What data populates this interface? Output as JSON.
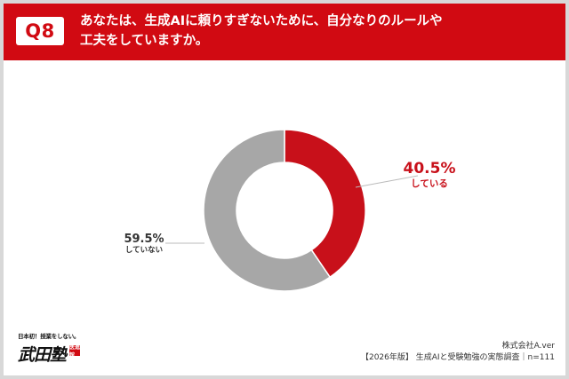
{
  "header": {
    "badge": "Q8",
    "question_line1": "あなたは、生成AIに頼りすぎないために、自分なりのルールや",
    "question_line2": "工夫をしていますか。"
  },
  "chart_data": {
    "type": "pie",
    "style": "donut",
    "categories": [
      "している",
      "していない"
    ],
    "values": [
      40.5,
      59.5
    ],
    "labels": [
      "40.5%",
      "59.5%"
    ],
    "colors": [
      "#c8101a",
      "#a7a7a7"
    ]
  },
  "labels": {
    "yes_pct": "40.5%",
    "yes_text": "している",
    "no_pct": "59.5%",
    "no_text": "していない"
  },
  "logo": {
    "tagline": "日本初！授業をしない。",
    "mark": "武田塾",
    "mark_badge": "医進館"
  },
  "footer": {
    "company": "株式会社A.ver",
    "source": "【2026年版】 生成AIと受験勉強の実態調査｜n=111"
  }
}
